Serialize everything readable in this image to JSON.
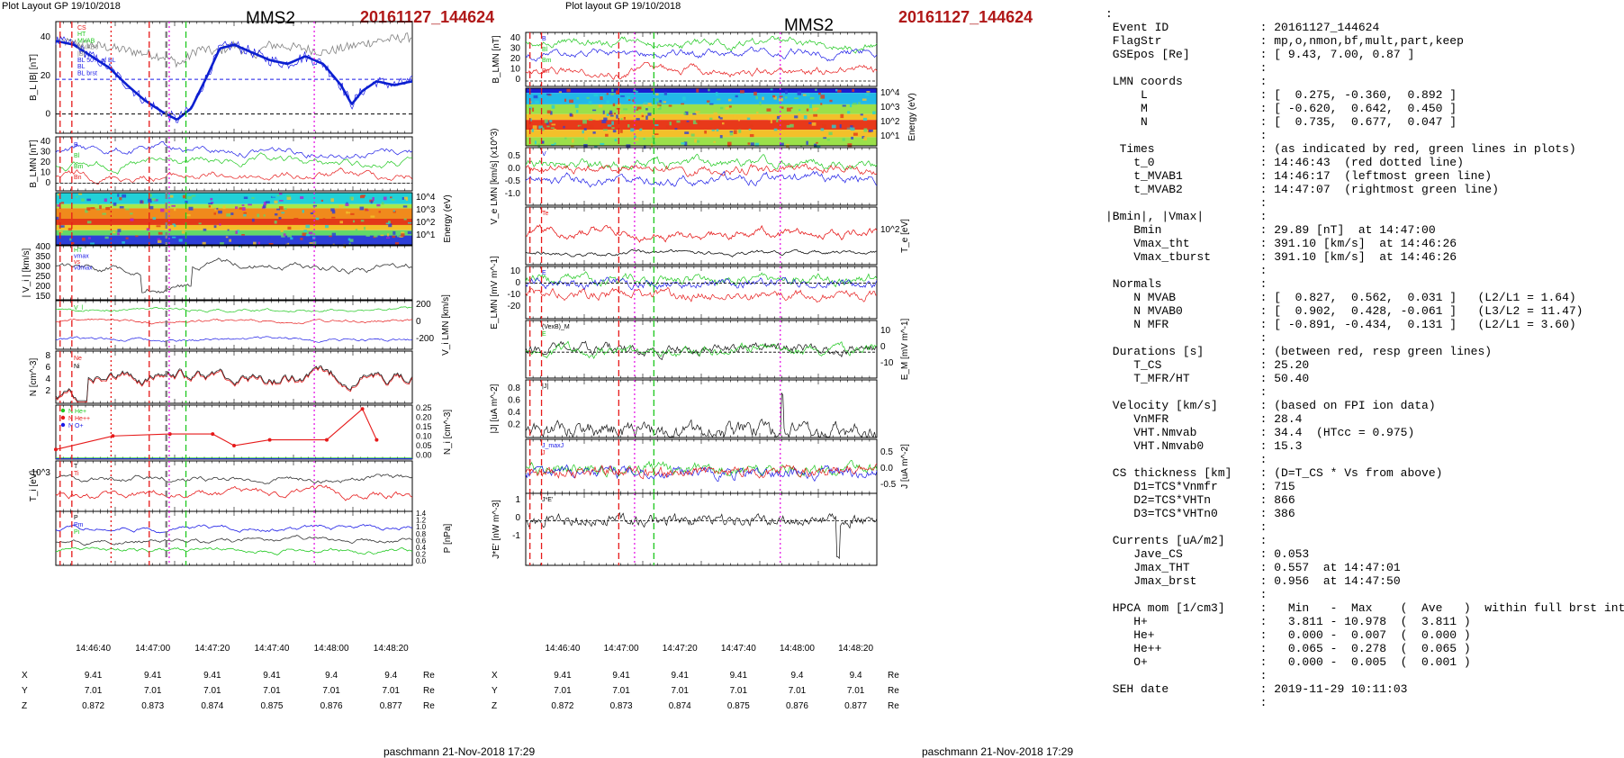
{
  "left_header": {
    "layout": "Plot Layout GP 19/10/2018",
    "sc": "MMS2",
    "event": "20161127_144624",
    "footer": "paschmann 21-Nov-2018 17:29"
  },
  "right_header": {
    "layout": "Plot layout GP 19/10/2018",
    "sc": "MMS2",
    "event": "20161127_144624",
    "footer": "paschmann 21-Nov-2018 17:29"
  },
  "time_ticks": [
    "14:46:40",
    "14:47:00",
    "14:47:20",
    "14:47:40",
    "14:48:00",
    "14:48:20"
  ],
  "orbit_rows": [
    {
      "label": "X",
      "values": [
        "9.41",
        "9.41",
        "9.41",
        "9.41",
        "9.4",
        "9.4"
      ],
      "unit": "Re"
    },
    {
      "label": "Y",
      "values": [
        "7.01",
        "7.01",
        "7.01",
        "7.01",
        "7.01",
        "7.01"
      ],
      "unit": "Re"
    },
    {
      "label": "Z",
      "values": [
        "0.872",
        "0.873",
        "0.874",
        "0.875",
        "0.876",
        "0.877"
      ],
      "unit": "Re"
    }
  ],
  "colors": {
    "black": "#000000",
    "blue": "#1a1ae6",
    "red": "#e61a1a",
    "green": "#1ec81e",
    "gray": "#808080",
    "magenta": "#e619e6",
    "title_red": "#b01818"
  },
  "chart_data": [
    {
      "type": "line",
      "column": "left",
      "panel": "B_L |B|",
      "ylabel": "B_L |B| [nT]",
      "yticks": [
        "40",
        "20",
        "0"
      ],
      "ylim": [
        -10,
        48
      ],
      "legend": [
        "CS",
        "HT",
        "MVAB",
        "MVAB0",
        "|B|",
        "BL 50% of BL",
        "BL",
        "BL brst"
      ],
      "series": [
        {
          "name": "|B|",
          "x": [
            0,
            0.1,
            0.2,
            0.3,
            0.35,
            0.4,
            0.45,
            0.5,
            0.55,
            0.6,
            0.7,
            0.75,
            0.8,
            0.9,
            1.0
          ],
          "y": [
            38,
            36,
            33,
            30,
            26,
            34,
            32,
            36,
            30,
            36,
            34,
            32,
            34,
            38,
            40
          ]
        },
        {
          "name": "BL",
          "x": [
            0,
            0.05,
            0.1,
            0.15,
            0.2,
            0.25,
            0.3,
            0.34,
            0.38,
            0.42,
            0.46,
            0.5,
            0.55,
            0.6,
            0.65,
            0.7,
            0.75,
            0.8,
            0.83,
            0.86,
            0.9,
            0.95,
            1.0
          ],
          "y": [
            38,
            36,
            30,
            24,
            15,
            7,
            1,
            -3,
            3,
            18,
            34,
            36,
            32,
            28,
            26,
            30,
            26,
            15,
            5,
            12,
            17,
            15,
            17
          ]
        }
      ],
      "hlines": [
        {
          "name": "50% of BL",
          "y": 18
        },
        {
          "name": "zero",
          "y": 0
        }
      ]
    },
    {
      "type": "line",
      "column": "left",
      "panel": "B_LMN",
      "ylabel": "B_LMN [nT]",
      "yticks": [
        "40",
        "30",
        "20",
        "10",
        "0"
      ],
      "ylim": [
        -5,
        45
      ],
      "legend": [
        "B",
        "Bl",
        "Bm",
        "Bn"
      ]
    },
    {
      "type": "heatmap",
      "column": "left",
      "panel": "ion energy spectrogram",
      "ylabel": "Energy (eV)",
      "yticks": [
        "10^4",
        "10^3",
        "10^2",
        "10^1"
      ]
    },
    {
      "type": "line",
      "column": "left",
      "panel": "|Vi|",
      "ylabel": "| V_i | [km/s]",
      "yticks": [
        "400",
        "350",
        "300",
        "250",
        "200",
        "150"
      ],
      "ylim": [
        150,
        400
      ],
      "legend": [
        "HT",
        "vmax",
        "vs",
        "vdmax"
      ]
    },
    {
      "type": "line",
      "column": "left",
      "panel": "Vi LMN",
      "ylabel": "V_i LMN [km/s]",
      "yticks": [
        "200",
        "0",
        "-200"
      ],
      "ylim": [
        -300,
        300
      ],
      "legend": [
        "V_l"
      ]
    },
    {
      "type": "line",
      "column": "left",
      "panel": "N",
      "ylabel": "N [cm^-3]",
      "yticks": [
        "8",
        "6",
        "4",
        "2"
      ],
      "ylim": [
        0,
        9
      ],
      "legend": [
        "Ne",
        "Ni"
      ]
    },
    {
      "type": "line",
      "column": "left",
      "panel": "Ni HPCA",
      "ylabel": "N_i [cm^-3]",
      "yticks": [
        "0.25",
        "0.20",
        "0.15",
        "0.10",
        "0.05",
        "0.00"
      ],
      "ylim": [
        0,
        0.28
      ],
      "legend": [
        "N He+",
        "N He++",
        "N O+"
      ],
      "series": [
        {
          "name": "N He++",
          "x": [
            0,
            0.16,
            0.32,
            0.44,
            0.5,
            0.6,
            0.76,
            0.86,
            0.9
          ],
          "y": [
            0.05,
            0.12,
            0.13,
            0.13,
            0.07,
            0.1,
            0.1,
            0.26,
            0.1
          ]
        }
      ]
    },
    {
      "type": "line",
      "column": "left",
      "panel": "Ti",
      "ylabel": "T_i [eV]",
      "yticks": [
        "10^3"
      ],
      "legend": [
        "T",
        "Ti"
      ]
    },
    {
      "type": "line",
      "column": "left",
      "panel": "P",
      "ylabel": "P [nPa]",
      "yticks": [
        "1.4",
        "1.2",
        "1.0",
        "0.8",
        "0.6",
        "0.4",
        "0.2",
        "0.0"
      ],
      "ylim": [
        0,
        1.4
      ],
      "legend": [
        "P",
        "Pm",
        "Pi"
      ]
    },
    {
      "type": "line",
      "column": "right",
      "panel": "B_LMN",
      "ylabel": "B_LMN [nT]",
      "yticks": [
        "40",
        "30",
        "20",
        "10",
        "0"
      ],
      "legend": [
        "B",
        "Bl",
        "Bm",
        "Bn"
      ]
    },
    {
      "type": "heatmap",
      "column": "right",
      "panel": "electron energy spectrogram",
      "ylabel": "Energy (eV)",
      "yticks": [
        "10^4",
        "10^3",
        "10^2",
        "10^1"
      ]
    },
    {
      "type": "line",
      "column": "right",
      "panel": "Ve LMN",
      "ylabel": "V_e LMN [km/s] (x10^3)",
      "yticks": [
        "0.5",
        "0.0",
        "-0.5",
        "-1.0"
      ],
      "legend": [
        "V"
      ]
    },
    {
      "type": "line",
      "column": "right",
      "panel": "Te",
      "ylabel": "T_e [eV]",
      "yticks": [
        "10^2"
      ],
      "legend": [
        "Te"
      ]
    },
    {
      "type": "line",
      "column": "right",
      "panel": "E_LMN",
      "ylabel": "E_LMN [mV m^-1]",
      "yticks": [
        "10",
        "0",
        "-10",
        "-20"
      ],
      "legend": [
        "E"
      ]
    },
    {
      "type": "line",
      "column": "right",
      "panel": "E_M",
      "ylabel": "E_M [mV m^-1]",
      "yticks": [
        "10",
        "0",
        "-10"
      ],
      "legend": [
        "(VexB)_M",
        "E"
      ]
    },
    {
      "type": "line",
      "column": "right",
      "panel": "|J|",
      "ylabel": "|J| [uA m^-2]",
      "yticks": [
        "0.8",
        "0.6",
        "0.4",
        "0.2"
      ],
      "legend": [
        "|J|"
      ]
    },
    {
      "type": "line",
      "column": "right",
      "panel": "J",
      "ylabel": "J [uA m^-2]",
      "yticks": [
        "0.5",
        "0.0",
        "-0.5"
      ],
      "legend": [
        "J_maxJ",
        "J"
      ]
    },
    {
      "type": "line",
      "column": "right",
      "panel": "J*E'",
      "ylabel": "J*E' [nW m^-3]",
      "yticks": [
        "1",
        "0",
        "-1"
      ],
      "legend": [
        "J*E'"
      ]
    }
  ],
  "info_lines": [
    ":",
    " Event ID             : 20161127_144624",
    " FlagStr              : mp,o,nmon,bf,mult,part,keep",
    " GSEpos [Re]          : [ 9.43, 7.00, 0.87 ]",
    "                      :",
    " LMN coords           :",
    "     L                : [  0.275, -0.360,  0.892 ]",
    "     M                : [ -0.620,  0.642,  0.450 ]",
    "     N                : [  0.735,  0.677,  0.047 ]",
    "                      :",
    "  Times               : (as indicated by red, green lines in plots)",
    "    t_0               : 14:46:43  (red dotted line)",
    "    t_MVAB1           : 14:46:17  (leftmost green line)",
    "    t_MVAB2           : 14:47:07  (rightmost green line)",
    "                      :",
    "|Bmin|, |Vmax|        :",
    "    Bmin              : 29.89 [nT]  at 14:47:00",
    "    Vmax_tht          : 391.10 [km/s]  at 14:46:26",
    "    Vmax_tburst       : 391.10 [km/s]  at 14:46:26",
    "                      :",
    " Normals              :",
    "    N MVAB            : [  0.827,  0.562,  0.031 ]   (L2/L1 = 1.64)",
    "    N MVAB0           : [  0.902,  0.428, -0.061 ]   (L3/L2 = 11.47)",
    "    N MFR             : [ -0.891, -0.434,  0.131 ]   (L2/L1 = 3.60)",
    "                      :",
    " Durations [s]        : (between red, resp green lines)",
    "    T_CS              : 25.20",
    "    T_MFR/HT          : 50.40",
    "                      :",
    " Velocity [km/s]      : (based on FPI ion data)",
    "    VnMFR             : 28.4",
    "    VHT.Nmvab         : 34.4  (HTcc = 0.975)",
    "    VHT.Nmvab0        : 15.3",
    "                      :",
    " CS thickness [km]    : (D=T_CS * Vs from above)",
    "    D1=TCS*Vnmfr      : 715",
    "    D2=TCS*VHTn       : 866",
    "    D3=TCS*VHTn0      : 386",
    "                      :",
    " Currents [uA/m2]     :",
    "    Jave_CS           : 0.053",
    "    Jmax_THT          : 0.557  at 14:47:01",
    "    Jmax_brst         : 0.956  at 14:47:50",
    "                      :",
    " HPCA mom [1/cm3]     :   Min   -  Max    (  Ave   )  within full brst int",
    "    H+                :   3.811 - 10.978  (  3.811 )",
    "    He+               :   0.000 -  0.007  (  0.000 )",
    "    He++              :   0.065 -  0.278  (  0.065 )",
    "    O+                :   0.000 -  0.005  (  0.001 )",
    "                      :",
    " SEH date             : 2019-11-29 10:11:03",
    "                      :"
  ]
}
